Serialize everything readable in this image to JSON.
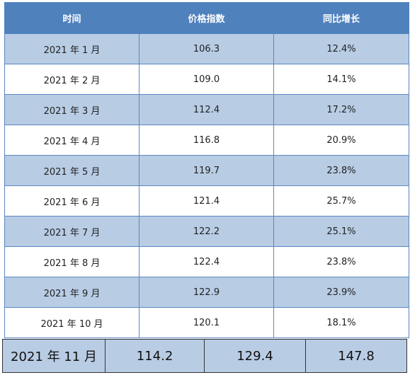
{
  "table": {
    "headers": [
      "时间",
      "价格指数",
      "同比增长"
    ],
    "rows": [
      {
        "time": "2021 年 1 月",
        "index": "106.3",
        "growth": "12.4%"
      },
      {
        "time": "2021 年 2 月",
        "index": "109.0",
        "growth": "14.1%"
      },
      {
        "time": "2021 年 3 月",
        "index": "112.4",
        "growth": "17.2%"
      },
      {
        "time": "2021 年 4 月",
        "index": "116.8",
        "growth": "20.9%"
      },
      {
        "time": "2021 年 5 月",
        "index": "119.7",
        "growth": "23.8%"
      },
      {
        "time": "2021 年 6 月",
        "index": "121.4",
        "growth": "25.7%"
      },
      {
        "time": "2021 年 7 月",
        "index": "122.2",
        "growth": "25.1%"
      },
      {
        "time": "2021 年 8 月",
        "index": "122.4",
        "growth": "23.8%"
      },
      {
        "time": "2021 年 9 月",
        "index": "122.9",
        "growth": "23.9%"
      },
      {
        "time": "2021 年 10 月",
        "index": "120.1",
        "growth": "18.1%"
      }
    ]
  },
  "bottom_row": {
    "time": "2021 年 11 月",
    "value1": "114.2",
    "value2": "129.4",
    "value3": "147.8"
  },
  "colors": {
    "header_bg": "#4f81bd",
    "row_alt_bg": "#b8cce4",
    "row_bg": "#ffffff"
  }
}
